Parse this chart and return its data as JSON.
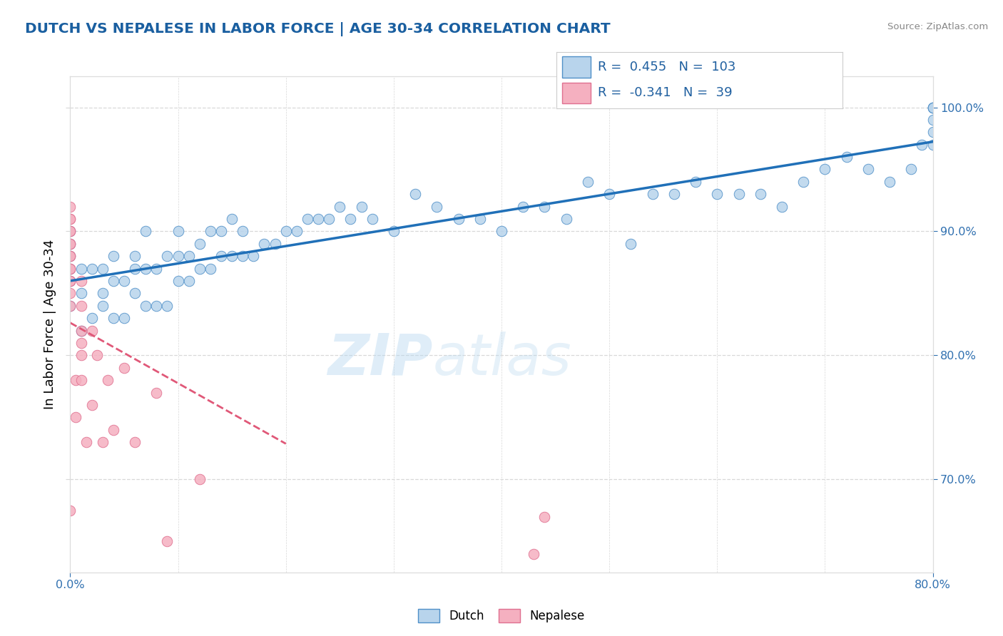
{
  "title": "DUTCH VS NEPALESE IN LABOR FORCE | AGE 30-34 CORRELATION CHART",
  "source_text": "Source: ZipAtlas.com",
  "ylabel": "In Labor Force | Age 30-34",
  "xmin": 0.0,
  "xmax": 0.8,
  "ymin": 0.625,
  "ymax": 1.025,
  "yticks": [
    0.7,
    0.8,
    0.9,
    1.0
  ],
  "ytick_labels": [
    "70.0%",
    "80.0%",
    "90.0%",
    "100.0%"
  ],
  "watermark_top": "ZIP",
  "watermark_bot": "atlas",
  "legend_dutch_R": "0.455",
  "legend_dutch_N": "103",
  "legend_nepalese_R": "-0.341",
  "legend_nepalese_N": "39",
  "dutch_color": "#b8d4ec",
  "dutch_edge_color": "#5090c8",
  "dutch_line_color": "#2070b8",
  "nepalese_color": "#f5b0c0",
  "nepalese_edge_color": "#e07090",
  "nepalese_line_color": "#e05878",
  "title_color": "#1a5fa0",
  "axis_tick_color": "#3070b0",
  "legend_color": "#2060a0",
  "grid_color": "#d8d8d8",
  "dutch_x": [
    0.0,
    0.0,
    0.0,
    0.0,
    0.0,
    0.0,
    0.01,
    0.01,
    0.01,
    0.02,
    0.02,
    0.03,
    0.03,
    0.03,
    0.04,
    0.04,
    0.04,
    0.05,
    0.05,
    0.06,
    0.06,
    0.06,
    0.07,
    0.07,
    0.07,
    0.08,
    0.08,
    0.09,
    0.09,
    0.1,
    0.1,
    0.1,
    0.11,
    0.11,
    0.12,
    0.12,
    0.13,
    0.13,
    0.14,
    0.14,
    0.15,
    0.15,
    0.16,
    0.16,
    0.17,
    0.18,
    0.19,
    0.2,
    0.21,
    0.22,
    0.23,
    0.24,
    0.25,
    0.26,
    0.27,
    0.28,
    0.3,
    0.32,
    0.34,
    0.36,
    0.38,
    0.4,
    0.42,
    0.44,
    0.46,
    0.48,
    0.5,
    0.52,
    0.54,
    0.56,
    0.58,
    0.6,
    0.62,
    0.64,
    0.66,
    0.68,
    0.7,
    0.72,
    0.74,
    0.76,
    0.78,
    0.79,
    0.8,
    0.8,
    0.8,
    0.8,
    0.8,
    0.8,
    0.8
  ],
  "dutch_y": [
    0.84,
    0.86,
    0.87,
    0.88,
    0.89,
    0.9,
    0.82,
    0.85,
    0.87,
    0.83,
    0.87,
    0.84,
    0.85,
    0.87,
    0.83,
    0.86,
    0.88,
    0.83,
    0.86,
    0.85,
    0.87,
    0.88,
    0.84,
    0.87,
    0.9,
    0.84,
    0.87,
    0.84,
    0.88,
    0.86,
    0.88,
    0.9,
    0.86,
    0.88,
    0.87,
    0.89,
    0.87,
    0.9,
    0.88,
    0.9,
    0.88,
    0.91,
    0.88,
    0.9,
    0.88,
    0.89,
    0.89,
    0.9,
    0.9,
    0.91,
    0.91,
    0.91,
    0.92,
    0.91,
    0.92,
    0.91,
    0.9,
    0.93,
    0.92,
    0.91,
    0.91,
    0.9,
    0.92,
    0.92,
    0.91,
    0.94,
    0.93,
    0.89,
    0.93,
    0.93,
    0.94,
    0.93,
    0.93,
    0.93,
    0.92,
    0.94,
    0.95,
    0.96,
    0.95,
    0.94,
    0.95,
    0.97,
    0.97,
    0.98,
    0.99,
    1.0,
    1.0,
    1.0,
    1.0
  ],
  "nep_x": [
    0.0,
    0.0,
    0.0,
    0.0,
    0.0,
    0.0,
    0.0,
    0.0,
    0.0,
    0.0,
    0.0,
    0.0,
    0.0,
    0.0,
    0.0,
    0.005,
    0.005,
    0.01,
    0.01,
    0.01,
    0.01,
    0.01,
    0.01,
    0.015,
    0.02,
    0.02,
    0.025,
    0.03,
    0.035,
    0.04,
    0.05,
    0.06,
    0.08,
    0.09,
    0.12,
    0.43,
    0.44
  ],
  "nep_y": [
    0.84,
    0.85,
    0.86,
    0.86,
    0.87,
    0.87,
    0.88,
    0.88,
    0.89,
    0.89,
    0.9,
    0.9,
    0.91,
    0.91,
    0.92,
    0.75,
    0.78,
    0.78,
    0.8,
    0.81,
    0.82,
    0.84,
    0.86,
    0.73,
    0.76,
    0.82,
    0.8,
    0.73,
    0.78,
    0.74,
    0.79,
    0.73,
    0.77,
    0.65,
    0.7,
    0.64,
    0.67
  ],
  "nep_outlier_x": [
    0.0
  ],
  "nep_outlier_y": [
    0.675
  ]
}
